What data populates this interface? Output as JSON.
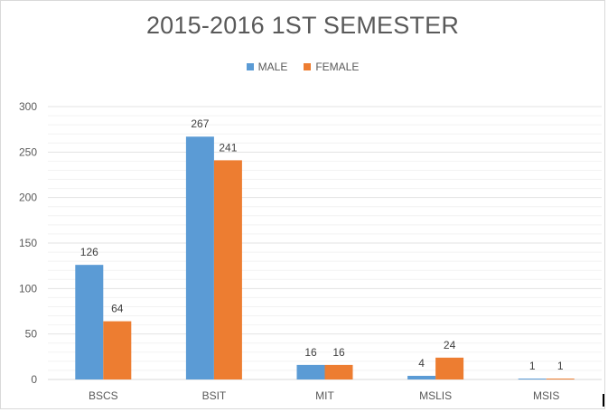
{
  "chart_data": {
    "type": "bar",
    "title": "2015-2016 1ST SEMESTER",
    "categories": [
      "BSCS",
      "BSIT",
      "MIT",
      "MSLIS",
      "MSIS"
    ],
    "series": [
      {
        "name": "MALE",
        "values": [
          126,
          267,
          16,
          4,
          1
        ],
        "color": "#5b9bd5"
      },
      {
        "name": "FEMALE",
        "values": [
          64,
          241,
          16,
          24,
          1
        ],
        "color": "#ed7d31"
      }
    ],
    "ylim": [
      0,
      300
    ],
    "yticks": [
      0,
      50,
      100,
      150,
      200,
      250,
      300
    ],
    "grid": true,
    "legend_position": "top"
  }
}
